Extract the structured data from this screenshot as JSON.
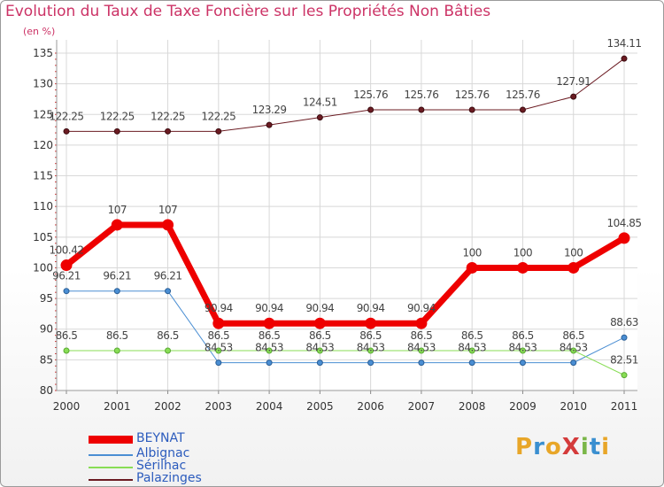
{
  "title": "Evolution du Taux de Taxe Foncière sur les Propriétés Non Bâties",
  "unit_label": "(en %)",
  "logo": {
    "text": "ProXiti",
    "letters": [
      "P",
      "r",
      "o",
      "X",
      "i",
      "t",
      "i"
    ],
    "colors": [
      "#e8a628",
      "#3a8fd0",
      "#e8a628",
      "#d43b3b",
      "#7ab648",
      "#3a8fd0",
      "#e8a628"
    ]
  },
  "chart_data": {
    "type": "line",
    "title": "Evolution du Taux de Taxe Foncière sur les Propriétés Non Bâties",
    "ylabel": "(en %)",
    "xlabel": "",
    "categories": [
      "2000",
      "2001",
      "2002",
      "2003",
      "2004",
      "2005",
      "2006",
      "2007",
      "2008",
      "2009",
      "2010",
      "2011"
    ],
    "ylim": [
      80,
      135
    ],
    "yticks": [
      80,
      85,
      90,
      95,
      100,
      105,
      110,
      115,
      120,
      125,
      130,
      135
    ],
    "series": [
      {
        "name": "BEYNAT",
        "color": "#ee0000",
        "values": [
          100.42,
          107,
          107,
          90.94,
          90.94,
          90.94,
          90.94,
          90.94,
          100,
          100,
          100,
          104.85
        ],
        "labels": [
          "100.42",
          "107",
          "107",
          "90.94",
          "90.94",
          "90.94",
          "90.94",
          "90.94",
          "100",
          "100",
          "100",
          "104.85"
        ]
      },
      {
        "name": "Albignac",
        "color": "#4a8ed3",
        "values": [
          96.21,
          96.21,
          96.21,
          84.53,
          84.53,
          84.53,
          84.53,
          84.53,
          84.53,
          84.53,
          84.53,
          88.63
        ],
        "labels": [
          "96.21",
          "96.21",
          "96.21",
          "84.53",
          "84.53",
          "84.53",
          "84.53",
          "84.53",
          "84.53",
          "84.53",
          "84.53",
          "88.63"
        ]
      },
      {
        "name": "Sérilhac",
        "color": "#88dd55",
        "values": [
          86.5,
          86.5,
          86.5,
          86.5,
          86.5,
          86.5,
          86.5,
          86.5,
          86.5,
          86.5,
          86.5,
          82.51
        ],
        "labels": [
          "86.5",
          "86.5",
          "86.5",
          "86.5",
          "86.5",
          "86.5",
          "86.5",
          "86.5",
          "86.5",
          "86.5",
          "86.5",
          "82.51"
        ]
      },
      {
        "name": "Palazinges",
        "color": "#6b1b22",
        "values": [
          122.25,
          122.25,
          122.25,
          122.25,
          123.29,
          124.51,
          125.76,
          125.76,
          125.76,
          125.76,
          127.91,
          134.11
        ],
        "labels": [
          "122.25",
          "122.25",
          "122.25",
          "122.25",
          "123.29",
          "124.51",
          "125.76",
          "125.76",
          "125.76",
          "125.76",
          "127.91",
          "134.11"
        ]
      }
    ]
  }
}
